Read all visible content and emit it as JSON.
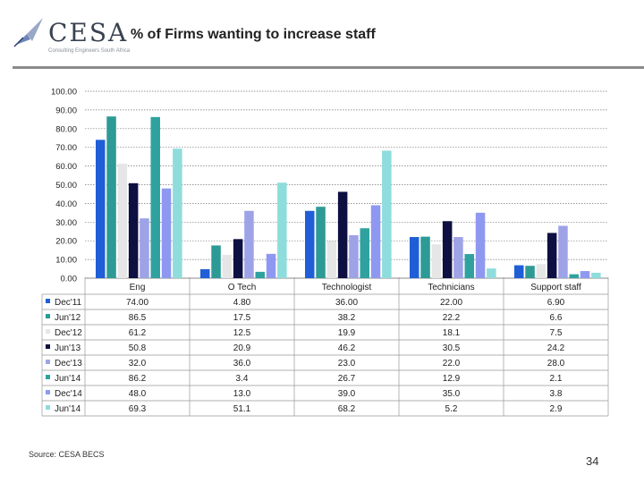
{
  "title": "% of Firms wanting to increase staff",
  "logo": {
    "name": "CESA",
    "tagline": "Consulting Engineers South Africa"
  },
  "source": "Source: CESA BECS",
  "page_number": "34",
  "colors": {
    "Dec'11": "#1f5ed6",
    "Jun'12": "#2d9a96",
    "Dec'12": "#e6e6e6",
    "Jun'13": "#0d1040",
    "Dec'13": "#9ea2e6",
    "Jun'14": "#2fa2a0",
    "Dec'14": "#8f98f0",
    "Jun'14b": "#8fdcdc"
  },
  "chart_data": {
    "type": "bar",
    "title": "% of Firms wanting to increase staff",
    "categories": [
      "Eng",
      "O Tech",
      "Technologist",
      "Technicians",
      "Support staff"
    ],
    "ylim": [
      0,
      100
    ],
    "yticks": [
      "0.00",
      "10.00",
      "20.00",
      "30.00",
      "40.00",
      "50.00",
      "60.00",
      "70.00",
      "80.00",
      "90.00",
      "100.00"
    ],
    "grid": true,
    "legend": "data-table-left",
    "series": [
      {
        "name": "Dec'11",
        "color_key": "Dec'11",
        "values": [
          74.0,
          4.8,
          36.0,
          22.0,
          6.9
        ],
        "labels": [
          "74.00",
          "4.80",
          "36.00",
          "22.00",
          "6.90"
        ]
      },
      {
        "name": "Jun'12",
        "color_key": "Jun'12",
        "values": [
          86.5,
          17.5,
          38.2,
          22.2,
          6.6
        ],
        "labels": [
          "86.5",
          "17.5",
          "38.2",
          "22.2",
          "6.6"
        ]
      },
      {
        "name": "Dec'12",
        "color_key": "Dec'12",
        "values": [
          61.2,
          12.5,
          19.9,
          18.1,
          7.5
        ],
        "labels": [
          "61.2",
          "12.5",
          "19.9",
          "18.1",
          "7.5"
        ]
      },
      {
        "name": "Jun'13",
        "color_key": "Jun'13",
        "values": [
          50.8,
          20.9,
          46.2,
          30.5,
          24.2
        ],
        "labels": [
          "50.8",
          "20.9",
          "46.2",
          "30.5",
          "24.2"
        ]
      },
      {
        "name": "Dec'13",
        "color_key": "Dec'13",
        "values": [
          32.0,
          36.0,
          23.0,
          22.0,
          28.0
        ],
        "labels": [
          "32.0",
          "36.0",
          "23.0",
          "22.0",
          "28.0"
        ]
      },
      {
        "name": "Jun'14",
        "color_key": "Jun'14",
        "values": [
          86.2,
          3.4,
          26.7,
          12.9,
          2.1
        ],
        "labels": [
          "86.2",
          "3.4",
          "26.7",
          "12.9",
          "2.1"
        ]
      },
      {
        "name": "Dec'14",
        "color_key": "Dec'14",
        "values": [
          48.0,
          13.0,
          39.0,
          35.0,
          3.8
        ],
        "labels": [
          "48.0",
          "13.0",
          "39.0",
          "35.0",
          "3.8"
        ]
      },
      {
        "name": "Jun'14",
        "color_key": "Jun'14b",
        "values": [
          69.3,
          51.1,
          68.2,
          5.2,
          2.9
        ],
        "labels": [
          "69.3",
          "51.1",
          "68.2",
          "5.2",
          "2.9"
        ]
      }
    ]
  }
}
